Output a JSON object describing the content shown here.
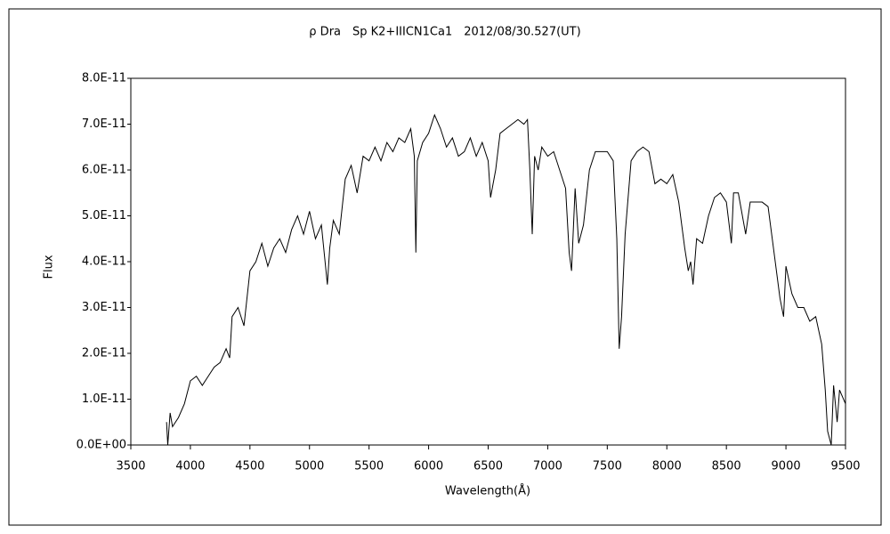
{
  "chart_data": {
    "type": "line",
    "title": "ρ Dra　Sp K2+IIICN1Ca1　2012/08/30.527(UT)",
    "xlabel": "Wavelength(Å)",
    "ylabel": "Flux",
    "x": [
      3800,
      3810,
      3830,
      3850,
      3900,
      3950,
      4000,
      4050,
      4100,
      4150,
      4200,
      4250,
      4300,
      4330,
      4350,
      4400,
      4450,
      4500,
      4550,
      4600,
      4650,
      4700,
      4750,
      4800,
      4850,
      4900,
      4950,
      5000,
      5050,
      5100,
      5150,
      5170,
      5200,
      5250,
      5300,
      5350,
      5400,
      5450,
      5500,
      5550,
      5600,
      5650,
      5700,
      5750,
      5800,
      5850,
      5880,
      5893,
      5905,
      5950,
      6000,
      6050,
      6100,
      6150,
      6200,
      6250,
      6300,
      6350,
      6400,
      6450,
      6500,
      6520,
      6563,
      6600,
      6650,
      6700,
      6750,
      6800,
      6830,
      6850,
      6870,
      6890,
      6920,
      6950,
      7000,
      7050,
      7100,
      7150,
      7180,
      7200,
      7230,
      7260,
      7300,
      7350,
      7400,
      7450,
      7500,
      7550,
      7580,
      7600,
      7620,
      7650,
      7700,
      7750,
      7800,
      7850,
      7900,
      7950,
      8000,
      8050,
      8100,
      8150,
      8180,
      8200,
      8220,
      8250,
      8300,
      8350,
      8400,
      8450,
      8500,
      8542,
      8560,
      8600,
      8662,
      8700,
      8750,
      8800,
      8850,
      8900,
      8950,
      8980,
      9000,
      9050,
      9100,
      9150,
      9200,
      9250,
      9300,
      9330,
      9350,
      9380,
      9400,
      9430,
      9450,
      9500
    ],
    "series": [
      {
        "name": "Flux",
        "color": "#000000",
        "values": [
          5e-12,
          0,
          7e-12,
          4e-12,
          6e-12,
          9e-12,
          1.4e-11,
          1.5e-11,
          1.3e-11,
          1.5e-11,
          1.7e-11,
          1.8e-11,
          2.1e-11,
          1.9e-11,
          2.8e-11,
          3e-11,
          2.6e-11,
          3.8e-11,
          4e-11,
          4.4e-11,
          3.9e-11,
          4.3e-11,
          4.5e-11,
          4.2e-11,
          4.7e-11,
          5e-11,
          4.6e-11,
          5.1e-11,
          4.5e-11,
          4.8e-11,
          3.5e-11,
          4.3e-11,
          4.9e-11,
          4.6e-11,
          5.8e-11,
          6.1e-11,
          5.5e-11,
          6.3e-11,
          6.2e-11,
          6.5e-11,
          6.2e-11,
          6.6e-11,
          6.4e-11,
          6.7e-11,
          6.6e-11,
          6.9e-11,
          6.3e-11,
          4.2e-11,
          6.2e-11,
          6.6e-11,
          6.8e-11,
          7.2e-11,
          6.9e-11,
          6.5e-11,
          6.7e-11,
          6.3e-11,
          6.4e-11,
          6.7e-11,
          6.3e-11,
          6.6e-11,
          6.2e-11,
          5.4e-11,
          6e-11,
          6.8e-11,
          6.9e-11,
          7e-11,
          7.1e-11,
          7e-11,
          7.1e-11,
          6e-11,
          4.6e-11,
          6.3e-11,
          6e-11,
          6.5e-11,
          6.3e-11,
          6.4e-11,
          6e-11,
          5.6e-11,
          4.2e-11,
          3.8e-11,
          5.6e-11,
          4.4e-11,
          4.8e-11,
          6e-11,
          6.4e-11,
          6.4e-11,
          6.4e-11,
          6.2e-11,
          4.5e-11,
          2.1e-11,
          2.8e-11,
          4.6e-11,
          6.2e-11,
          6.4e-11,
          6.5e-11,
          6.4e-11,
          5.7e-11,
          5.8e-11,
          5.7e-11,
          5.9e-11,
          5.3e-11,
          4.3e-11,
          3.8e-11,
          4e-11,
          3.5e-11,
          4.5e-11,
          4.4e-11,
          5e-11,
          5.4e-11,
          5.5e-11,
          5.3e-11,
          4.4e-11,
          5.5e-11,
          5.5e-11,
          4.6e-11,
          5.3e-11,
          5.3e-11,
          5.3e-11,
          5.2e-11,
          4.2e-11,
          3.2e-11,
          2.8e-11,
          3.9e-11,
          3.3e-11,
          3e-11,
          3e-11,
          2.7e-11,
          2.8e-11,
          2.2e-11,
          1.2e-11,
          3e-12,
          0,
          1.3e-11,
          5e-12,
          1.2e-11,
          9e-12
        ]
      }
    ],
    "xlim": [
      3500,
      9500
    ],
    "xticks": [
      3500,
      4000,
      4500,
      5000,
      5500,
      6000,
      6500,
      7000,
      7500,
      8000,
      8500,
      9000,
      9500
    ],
    "ylim": [
      0,
      8e-11
    ],
    "yticks": [
      {
        "value": 0,
        "label": "0.0E+00"
      },
      {
        "value": 1e-11,
        "label": "1.0E-11"
      },
      {
        "value": 2e-11,
        "label": "2.0E-11"
      },
      {
        "value": 3e-11,
        "label": "3.0E-11"
      },
      {
        "value": 4e-11,
        "label": "4.0E-11"
      },
      {
        "value": 5e-11,
        "label": "5.0E-11"
      },
      {
        "value": 6e-11,
        "label": "6.0E-11"
      },
      {
        "value": 7e-11,
        "label": "7.0E-11"
      },
      {
        "value": 8e-11,
        "label": "8.0E-11"
      }
    ],
    "grid": false
  }
}
